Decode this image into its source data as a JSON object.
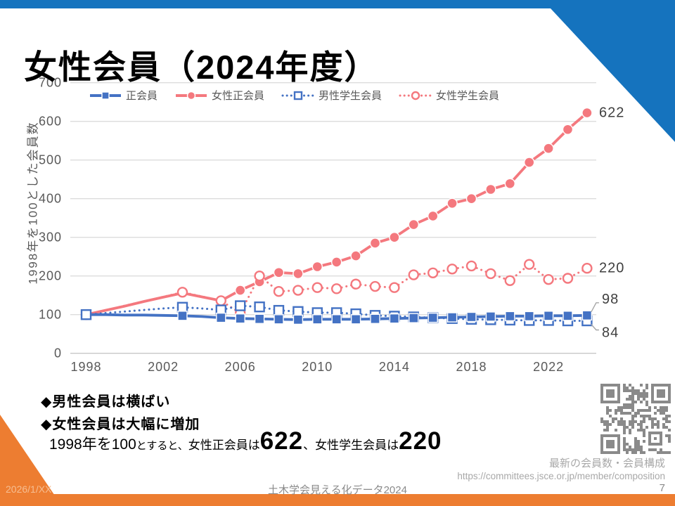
{
  "slide": {
    "title": "女性会員（2024年度）"
  },
  "chart_data": {
    "type": "line",
    "ylabel": "1998年を100とした会員数",
    "x": [
      1998,
      1999,
      2000,
      2001,
      2002,
      2003,
      2004,
      2005,
      2006,
      2007,
      2008,
      2009,
      2010,
      2011,
      2012,
      2013,
      2014,
      2015,
      2016,
      2017,
      2018,
      2019,
      2020,
      2021,
      2022,
      2023,
      2024
    ],
    "xticks": [
      1998,
      2002,
      2006,
      2010,
      2014,
      2018,
      2022
    ],
    "yticks": [
      0,
      100,
      200,
      300,
      400,
      500,
      600,
      700
    ],
    "ylim": [
      0,
      700
    ],
    "grid": true,
    "legend_position": "top",
    "series": [
      {
        "key": "regular-members",
        "name": "正会員",
        "color": "#4472C4",
        "line": "solid",
        "marker": "square-filled",
        "end_label": "98",
        "values": [
          100,
          100,
          99,
          99,
          98,
          97,
          95,
          92,
          90,
          89,
          88,
          87,
          88,
          88,
          88,
          89,
          90,
          91,
          92,
          93,
          94,
          95,
          96,
          96,
          97,
          97,
          98
        ],
        "marker_years": [
          2003,
          2005,
          2006,
          2007,
          2008,
          2009,
          2010,
          2011,
          2012,
          2013,
          2014,
          2015,
          2016,
          2017,
          2018,
          2019,
          2020,
          2021,
          2022,
          2023,
          2024
        ]
      },
      {
        "key": "female-regular-members",
        "name": "女性正会員",
        "color": "#F4787E",
        "line": "solid",
        "marker": "circle-filled",
        "end_label": "622",
        "values": [
          100,
          111,
          122,
          134,
          145,
          156,
          146,
          136,
          163,
          185,
          209,
          206,
          224,
          236,
          252,
          285,
          300,
          333,
          355,
          388,
          400,
          424,
          439,
          494,
          530,
          579,
          622
        ],
        "marker_years": [
          2006,
          2007,
          2008,
          2009,
          2010,
          2011,
          2012,
          2013,
          2014,
          2015,
          2016,
          2017,
          2018,
          2019,
          2020,
          2021,
          2022,
          2023,
          2024
        ]
      },
      {
        "key": "male-student-members",
        "name": "男性学生会員",
        "color": "#4472C4",
        "line": "dotted",
        "marker": "square-open",
        "end_label": "84",
        "values": [
          100,
          104,
          108,
          112,
          116,
          119,
          116,
          112,
          123,
          120,
          111,
          108,
          105,
          105,
          102,
          98,
          96,
          94,
          92,
          90,
          88,
          87,
          86,
          85,
          85,
          84,
          84
        ],
        "marker_years": [
          1998,
          2003,
          2005,
          2006,
          2007,
          2008,
          2009,
          2010,
          2011,
          2012,
          2013,
          2014,
          2015,
          2016,
          2017,
          2018,
          2019,
          2020,
          2021,
          2022,
          2023,
          2024
        ]
      },
      {
        "key": "female-student-members",
        "name": "女性学生会員",
        "color": "#F4787E",
        "line": "dotted",
        "marker": "circle-open",
        "end_label": "220",
        "values": [
          100,
          111,
          123,
          134,
          146,
          158,
          147,
          136,
          104,
          200,
          160,
          163,
          170,
          167,
          179,
          173,
          170,
          203,
          208,
          218,
          226,
          206,
          188,
          230,
          191,
          194,
          220
        ],
        "marker_years": [
          1998,
          2003,
          2005,
          2006,
          2007,
          2008,
          2009,
          2010,
          2011,
          2012,
          2013,
          2014,
          2015,
          2016,
          2017,
          2018,
          2019,
          2020,
          2021,
          2022,
          2023,
          2024
        ]
      }
    ]
  },
  "notes": {
    "bullet1": "◆男性会員は横ばい",
    "bullet2": "◆女性会員は大幅に増加",
    "summary": {
      "part1": "1998年を100",
      "part2": "とすると、",
      "part3": "女性正会員は",
      "value1": "622",
      "part4": "、 ",
      "part5": "女性学生会員は",
      "value2": "220"
    }
  },
  "source": {
    "caption": "最新の会員数・会員構成",
    "url": "https://committees.jsce.or.jp/member/composition"
  },
  "footer": {
    "date": "2026/1/XX",
    "center": "土木学会見える化データ2024",
    "page": "7"
  },
  "colors": {
    "header_blue": "#1573BE",
    "accent_orange": "#ED7D31",
    "chart_blue": "#4472C4",
    "chart_salmon": "#F4787E",
    "axis_text": "#595959",
    "grid": "#DCDCDC",
    "label_text": "#3F3F3F",
    "qr": "#8A8A8A"
  }
}
